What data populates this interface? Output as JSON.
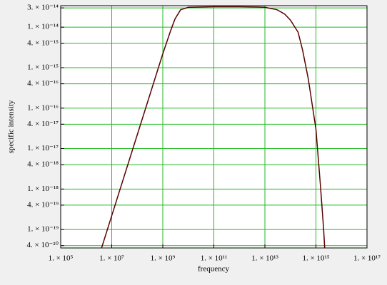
{
  "chart_data": {
    "type": "line",
    "xlabel": "frequency",
    "ylabel": "specific intensity",
    "x": [
      4000000.0,
      10000000.0,
      100000000.0,
      1000000000.0,
      2000000000.0,
      3000000000.0,
      5000000000.0,
      10000000000.0,
      100000000000.0,
      1000000000000.0,
      5000000000000.0,
      10000000000000.0,
      30000000000000.0,
      60000000000000.0,
      100000000000000.0,
      200000000000000.0,
      300000000000000.0,
      500000000000000.0,
      1000000000000000.0,
      1500000000000000.0,
      2000000000000000.0,
      2200000000000000.0
    ],
    "series": [
      {
        "color": "#5a0000",
        "values": [
          3.5e-20,
          2.2e-19,
          2.2e-17,
          2.2e-15,
          8e-15,
          1.6e-14,
          2.7e-14,
          3.1e-14,
          3.2e-14,
          3.2e-14,
          3.15e-14,
          3.1e-14,
          2.7e-14,
          2.1e-14,
          1.5e-14,
          7.5e-15,
          2.7e-15,
          5.3e-16,
          3e-17,
          1.2e-18,
          1e-19,
          3.5e-20
        ]
      }
    ],
    "xscale": "log",
    "yscale": "log",
    "xlim": [
      100000.0,
      1e+17
    ],
    "ylim": [
      3.5e-20,
      3.4e-14
    ],
    "xticks": [
      {
        "value": 100000.0,
        "label": "1. × 10⁵"
      },
      {
        "value": 10000000.0,
        "label": "1. × 10⁷"
      },
      {
        "value": 1000000000.0,
        "label": "1. × 10⁹"
      },
      {
        "value": 100000000000.0,
        "label": "1. × 10¹¹"
      },
      {
        "value": 10000000000000.0,
        "label": "1. × 10¹³"
      },
      {
        "value": 1000000000000000.0,
        "label": "1. × 10¹⁵"
      },
      {
        "value": 1e+17,
        "label": "1. × 10¹⁷"
      }
    ],
    "yticks": [
      {
        "value": 3e-14,
        "label": "3. × 10⁻¹⁴"
      },
      {
        "value": 1e-14,
        "label": "1. × 10⁻¹⁴"
      },
      {
        "value": 4e-15,
        "label": "4. × 10⁻¹⁵"
      },
      {
        "value": 1e-15,
        "label": "1. × 10⁻¹⁵"
      },
      {
        "value": 4e-16,
        "label": "4. × 10⁻¹⁶"
      },
      {
        "value": 1e-16,
        "label": "1. × 10⁻¹⁶"
      },
      {
        "value": 4e-17,
        "label": "4. × 10⁻¹⁷"
      },
      {
        "value": 1e-17,
        "label": "1. × 10⁻¹⁷"
      },
      {
        "value": 4e-18,
        "label": "4. × 10⁻¹⁸"
      },
      {
        "value": 1e-18,
        "label": "1. × 10⁻¹⁸"
      },
      {
        "value": 4e-19,
        "label": "4. × 10⁻¹⁹"
      },
      {
        "value": 1e-19,
        "label": "1. × 10⁻¹⁹"
      },
      {
        "value": 4e-20,
        "label": "4. × 10⁻²⁰"
      }
    ],
    "grid": true,
    "grid_color": "#22bb22"
  }
}
